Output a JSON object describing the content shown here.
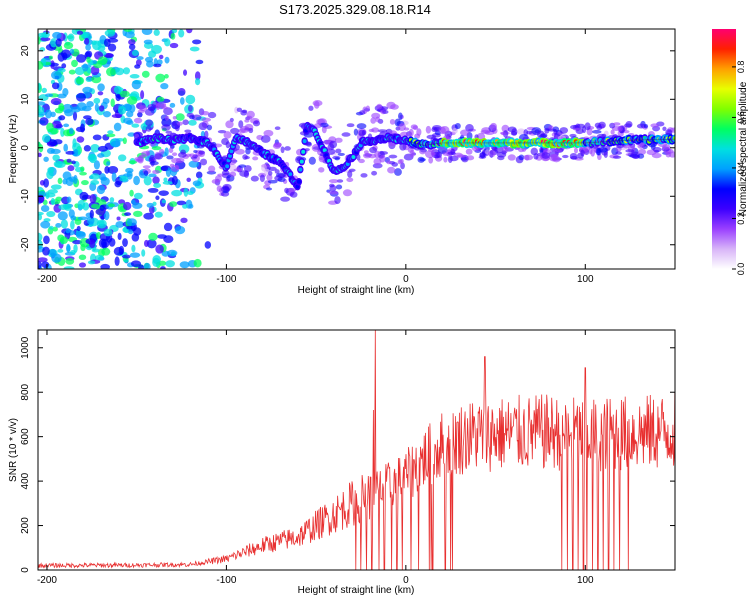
{
  "page_title": "S173.2025.329.08.18.R14",
  "chart_data": [
    {
      "type": "heatmap",
      "title": "S173.2025.329.08.18.R14",
      "xlabel": "Height of straight line (km)",
      "ylabel": "Frequency (Hz)",
      "xlim": [
        -205,
        150
      ],
      "ylim": [
        -25,
        24.5
      ],
      "xticks": [
        -200,
        -100,
        0,
        100
      ],
      "xtick_labels": [
        "-200",
        "-100",
        "0",
        "100"
      ],
      "yticks": [
        -20,
        -10,
        0,
        10,
        20
      ],
      "ytick_labels": [
        "-20",
        "-10",
        "0",
        "10",
        "20"
      ],
      "ridge_line": {
        "x": [
          -150,
          -140,
          -130,
          -120,
          -110,
          -100,
          -95,
          -90,
          -80,
          -70,
          -60,
          -55,
          -50,
          -45,
          -40,
          -35,
          -30,
          -25,
          -20,
          -10,
          0,
          10,
          20,
          40,
          60,
          80,
          100,
          120,
          150
        ],
        "y": [
          1,
          2,
          1.5,
          2,
          1,
          -4,
          2,
          1.5,
          -1,
          -3,
          -8,
          5,
          3,
          -1,
          -5,
          -4,
          -2,
          1,
          1.5,
          2,
          1.5,
          0.5,
          1,
          1,
          1,
          1,
          1,
          1.5,
          1.8
        ]
      },
      "colorbar": {
        "label": "Normalized spectral amplitude",
        "range": [
          0,
          0.95
        ],
        "ticks": [
          0.0,
          0.2,
          0.4,
          0.6,
          0.8
        ],
        "tick_labels": [
          "0.0",
          "0.2",
          "0.4",
          "0.6",
          "0.8"
        ],
        "colors": [
          "#ffffff",
          "#d8b4f8",
          "#9a40ff",
          "#3c00ff",
          "#0000ff",
          "#00a0ff",
          "#00e0e0",
          "#00ff60",
          "#80ff00",
          "#e8ff00",
          "#ffa000",
          "#ff2000",
          "#ff0070"
        ]
      }
    },
    {
      "type": "line",
      "xlabel": "Height of straight line (km)",
      "ylabel": "SNR (10 * v/v)",
      "xlim": [
        -205,
        150
      ],
      "ylim": [
        0,
        1080
      ],
      "xticks": [
        -200,
        -100,
        0,
        100
      ],
      "xtick_labels": [
        "-200",
        "-100",
        "0",
        "100"
      ],
      "yticks": [
        0,
        200,
        400,
        600,
        800,
        1000
      ],
      "ytick_labels": [
        "0",
        "200",
        "400",
        "600",
        "800",
        "1000"
      ],
      "color": "#e83030",
      "envelope": {
        "x": [
          -205,
          -150,
          -120,
          -100,
          -80,
          -60,
          -40,
          -30,
          -20,
          -10,
          0,
          10,
          20,
          30,
          40,
          60,
          80,
          100,
          120,
          140,
          150
        ],
        "y": [
          20,
          22,
          25,
          50,
          110,
          150,
          250,
          300,
          340,
          380,
          420,
          500,
          560,
          590,
          610,
          615,
          620,
          610,
          615,
          620,
          630
        ]
      },
      "spikes": [
        {
          "x": -17,
          "y": 1080
        },
        {
          "x": -18,
          "y": 720
        },
        {
          "x": 44,
          "y": 960
        },
        {
          "x": 100,
          "y": 910
        }
      ],
      "dropouts_x": [
        -28,
        -25,
        -22,
        -19,
        -15,
        -12,
        -8,
        -5,
        -2,
        3,
        7,
        13,
        14,
        15,
        22,
        25,
        26,
        87,
        90,
        93,
        96,
        99,
        101,
        104,
        107,
        110,
        113,
        116,
        119,
        124
      ]
    }
  ]
}
